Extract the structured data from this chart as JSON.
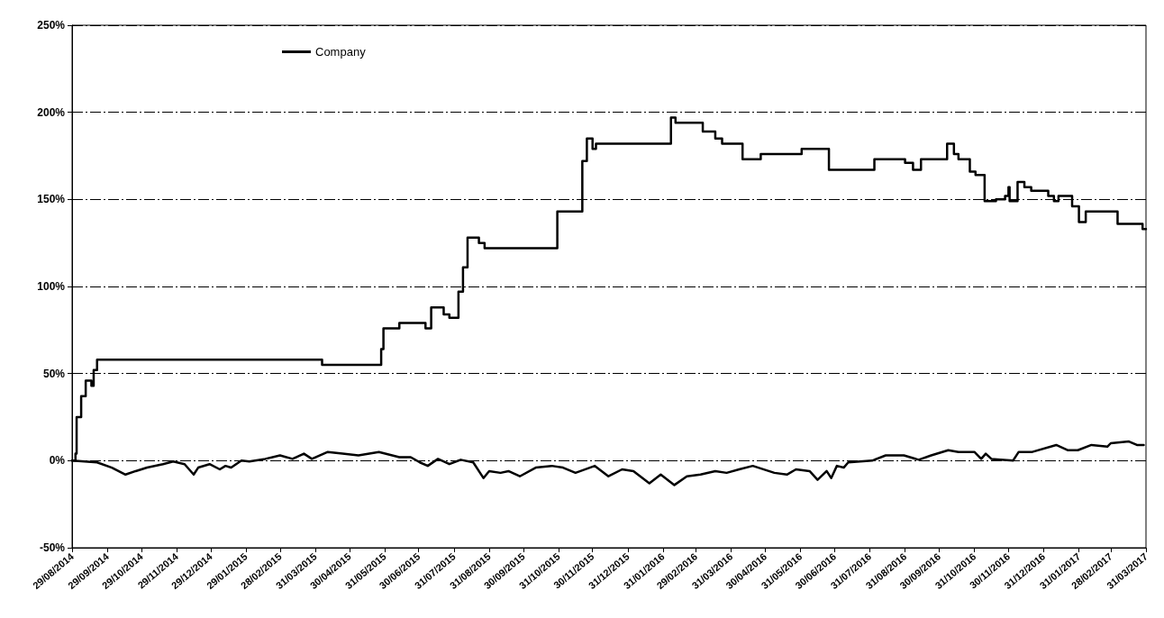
{
  "chart_data": {
    "type": "line",
    "xlim": [
      "2014-08-29",
      "2017-03-31"
    ],
    "xticks": [
      {
        "value": "2014-08-29",
        "label": "29/08/2014"
      },
      {
        "value": "2014-09-29",
        "label": "29/09/2014"
      },
      {
        "value": "2014-10-29",
        "label": "29/10/2014"
      },
      {
        "value": "2014-11-29",
        "label": "29/11/2014"
      },
      {
        "value": "2014-12-29",
        "label": "29/12/2014"
      },
      {
        "value": "2015-01-29",
        "label": "29/01/2015"
      },
      {
        "value": "2015-02-28",
        "label": "28/02/2015"
      },
      {
        "value": "2015-03-31",
        "label": "31/03/2015"
      },
      {
        "value": "2015-04-30",
        "label": "30/04/2015"
      },
      {
        "value": "2015-05-31",
        "label": "31/05/2015"
      },
      {
        "value": "2015-06-30",
        "label": "30/06/2015"
      },
      {
        "value": "2015-07-31",
        "label": "31/07/2015"
      },
      {
        "value": "2015-08-31",
        "label": "31/08/2015"
      },
      {
        "value": "2015-09-30",
        "label": "30/09/2015"
      },
      {
        "value": "2015-10-31",
        "label": "31/10/2015"
      },
      {
        "value": "2015-11-30",
        "label": "30/11/2015"
      },
      {
        "value": "2015-12-31",
        "label": "31/12/2015"
      },
      {
        "value": "2016-01-31",
        "label": "31/01/2016"
      },
      {
        "value": "2016-02-29",
        "label": "29/02/2016"
      },
      {
        "value": "2016-03-31",
        "label": "31/03/2016"
      },
      {
        "value": "2016-04-30",
        "label": "30/04/2016"
      },
      {
        "value": "2016-05-31",
        "label": "31/05/2016"
      },
      {
        "value": "2016-06-30",
        "label": "30/06/2016"
      },
      {
        "value": "2016-07-31",
        "label": "31/07/2016"
      },
      {
        "value": "2016-08-31",
        "label": "31/08/2016"
      },
      {
        "value": "2016-09-30",
        "label": "30/09/2016"
      },
      {
        "value": "2016-10-31",
        "label": "31/10/2016"
      },
      {
        "value": "2016-11-30",
        "label": "30/11/2016"
      },
      {
        "value": "2016-12-31",
        "label": "31/12/2016"
      },
      {
        "value": "2017-01-31",
        "label": "31/01/2017"
      },
      {
        "value": "2017-02-28",
        "label": "28/02/2017"
      },
      {
        "value": "2017-03-31",
        "label": "31/03/2017"
      }
    ],
    "ylim": [
      -50,
      250
    ],
    "yticks": [
      {
        "value": -50,
        "label": "-50%"
      },
      {
        "value": 0,
        "label": "0%"
      },
      {
        "value": 50,
        "label": "50%"
      },
      {
        "value": 100,
        "label": "100%"
      },
      {
        "value": 150,
        "label": "150%"
      },
      {
        "value": 200,
        "label": "200%"
      },
      {
        "value": 250,
        "label": "250%"
      }
    ],
    "grid": "y",
    "legend": "top",
    "line_style": "solid",
    "marker": "none",
    "series": [
      {
        "name": "Company",
        "type": "step",
        "color": "#000000",
        "x": [
          "2014-08-29",
          "2014-09-01",
          "2014-09-02",
          "2014-09-06",
          "2014-09-10",
          "2014-09-15",
          "2014-09-17",
          "2014-09-20",
          "2015-04-06",
          "2015-05-28",
          "2015-05-30",
          "2015-06-13",
          "2015-07-06",
          "2015-07-11",
          "2015-07-22",
          "2015-07-27",
          "2015-08-04",
          "2015-08-08",
          "2015-08-12",
          "2015-08-22",
          "2015-08-27",
          "2015-10-30",
          "2015-11-21",
          "2015-11-25",
          "2015-11-30",
          "2015-12-03",
          "2016-02-07",
          "2016-02-11",
          "2016-03-06",
          "2016-03-17",
          "2016-03-23",
          "2016-04-10",
          "2016-04-26",
          "2016-06-01",
          "2016-06-25",
          "2016-08-04",
          "2016-08-31",
          "2016-09-07",
          "2016-09-14",
          "2016-10-07",
          "2016-10-13",
          "2016-10-17",
          "2016-10-27",
          "2016-11-01",
          "2016-11-09",
          "2016-11-19",
          "2016-11-27",
          "2016-11-30",
          "2016-12-01",
          "2016-12-08",
          "2016-12-14",
          "2016-12-20",
          "2017-01-04",
          "2017-01-09",
          "2017-01-13",
          "2017-01-25",
          "2017-01-31",
          "2017-02-06",
          "2017-03-06",
          "2017-03-28",
          "2017-03-31"
        ],
        "values": [
          0,
          4,
          25,
          37,
          46,
          43,
          52,
          58,
          55,
          64,
          76,
          79,
          76,
          88,
          84,
          82,
          97,
          111,
          128,
          125,
          122,
          143,
          172,
          185,
          179,
          182,
          197,
          194,
          189,
          185,
          182,
          173,
          176,
          179,
          167,
          173,
          171,
          167,
          173,
          182,
          176,
          173,
          166,
          164,
          149,
          150,
          152,
          157,
          149,
          160,
          157,
          155,
          152,
          149,
          152,
          146,
          137,
          143,
          136,
          133,
          133
        ]
      },
      {
        "color": "#000000",
        "x": [
          "2014-08-29",
          "2014-09-20",
          "2014-10-03",
          "2014-10-15",
          "2014-10-24",
          "2014-11-03",
          "2014-11-17",
          "2014-11-26",
          "2014-12-06",
          "2014-12-14",
          "2014-12-18",
          "2014-12-28",
          "2015-01-06",
          "2015-01-11",
          "2015-01-16",
          "2015-01-25",
          "2015-02-01",
          "2015-02-15",
          "2015-02-28",
          "2015-03-11",
          "2015-03-21",
          "2015-03-28",
          "2015-04-11",
          "2015-04-24",
          "2015-05-08",
          "2015-05-26",
          "2015-06-13",
          "2015-06-23",
          "2015-07-01",
          "2015-07-08",
          "2015-07-17",
          "2015-07-27",
          "2015-08-06",
          "2015-08-17",
          "2015-08-26",
          "2015-08-31",
          "2015-09-10",
          "2015-09-17",
          "2015-09-27",
          "2015-10-11",
          "2015-10-25",
          "2015-11-04",
          "2015-11-15",
          "2015-12-02",
          "2015-12-14",
          "2015-12-26",
          "2016-01-05",
          "2016-01-19",
          "2016-01-29",
          "2016-02-10",
          "2016-02-21",
          "2016-03-04",
          "2016-03-17",
          "2016-03-27",
          "2016-04-07",
          "2016-04-19",
          "2016-05-08",
          "2016-05-19",
          "2016-05-27",
          "2016-06-08",
          "2016-06-15",
          "2016-06-23",
          "2016-06-27",
          "2016-07-02",
          "2016-07-08",
          "2016-07-12",
          "2016-08-02",
          "2016-08-14",
          "2016-08-30",
          "2016-09-12",
          "2016-09-23",
          "2016-10-08",
          "2016-10-17",
          "2016-10-31",
          "2016-11-06",
          "2016-11-10",
          "2016-11-15",
          "2016-12-04",
          "2016-12-09",
          "2016-12-21",
          "2017-01-11",
          "2017-01-21",
          "2017-01-30",
          "2017-02-11",
          "2017-02-25",
          "2017-02-28",
          "2017-03-16",
          "2017-03-23",
          "2017-03-29"
        ],
        "values": [
          0,
          -1,
          -4,
          -8,
          -6,
          -4,
          -2,
          -0.5,
          -2,
          -8,
          -4,
          -2,
          -5,
          -3,
          -4,
          0,
          -0.5,
          1,
          3,
          1,
          4,
          1,
          5,
          4,
          3,
          5,
          2,
          2,
          -1,
          -3,
          1,
          -2,
          0.5,
          -1,
          -10,
          -6,
          -7,
          -6,
          -9,
          -4,
          -3,
          -4,
          -7,
          -3,
          -9,
          -5,
          -6,
          -13,
          -8,
          -14,
          -9,
          -8,
          -6,
          -7,
          -5,
          -3,
          -7,
          -8,
          -5,
          -6,
          -11,
          -6,
          -10,
          -3,
          -4,
          -1,
          0,
          3,
          3,
          0.5,
          3,
          6,
          5,
          5,
          1,
          4,
          1,
          0,
          5,
          5,
          9,
          6,
          6,
          9,
          8,
          10,
          11,
          9,
          9
        ]
      }
    ]
  }
}
